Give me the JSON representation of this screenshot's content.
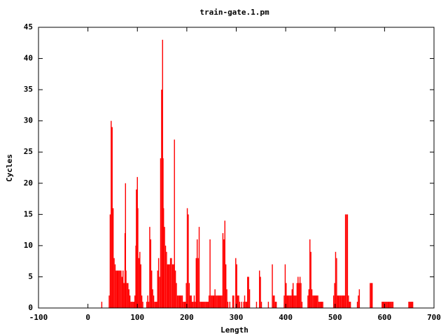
{
  "chart_data": {
    "type": "bar",
    "title": "train-gate.1.pm",
    "x_label": "Length",
    "y_label": "Cycles",
    "color": "#ff0000",
    "grid": false,
    "xlim": [
      -100,
      700
    ],
    "xticks": [
      -100,
      0,
      100,
      200,
      300,
      400,
      500,
      600,
      700
    ],
    "ylim": [
      0,
      45
    ],
    "yticks": [
      0,
      5,
      10,
      15,
      20,
      25,
      30,
      35,
      40,
      45
    ],
    "x": [
      27,
      42,
      44,
      46,
      48,
      50,
      52,
      54,
      56,
      58,
      60,
      62,
      64,
      66,
      68,
      70,
      72,
      74,
      75,
      76,
      78,
      80,
      82,
      84,
      86,
      88,
      90,
      92,
      94,
      96,
      97,
      99,
      100,
      102,
      104,
      106,
      108,
      110,
      118,
      120,
      122,
      124,
      126,
      128,
      130,
      132,
      134,
      136,
      138,
      140,
      142,
      144,
      146,
      148,
      150,
      151,
      152,
      154,
      156,
      158,
      160,
      162,
      164,
      166,
      168,
      170,
      172,
      174,
      176,
      178,
      180,
      182,
      184,
      186,
      188,
      190,
      192,
      194,
      196,
      198,
      200,
      202,
      204,
      206,
      208,
      210,
      212,
      214,
      216,
      218,
      220,
      222,
      224,
      226,
      228,
      230,
      232,
      234,
      236,
      238,
      240,
      242,
      244,
      246,
      248,
      250,
      252,
      254,
      256,
      258,
      260,
      262,
      264,
      266,
      268,
      270,
      272,
      274,
      276,
      278,
      280,
      282,
      286,
      292,
      294,
      298,
      300,
      302,
      304,
      306,
      310,
      314,
      316,
      318,
      320,
      322,
      324,
      326,
      340,
      346,
      348,
      350,
      364,
      372,
      374,
      376,
      378,
      380,
      396,
      398,
      400,
      402,
      404,
      406,
      408,
      410,
      412,
      414,
      416,
      418,
      420,
      422,
      424,
      426,
      428,
      430,
      432,
      444,
      446,
      448,
      450,
      452,
      454,
      456,
      458,
      460,
      462,
      464,
      466,
      468,
      470,
      472,
      474,
      496,
      498,
      500,
      502,
      504,
      506,
      508,
      510,
      512,
      514,
      516,
      518,
      520,
      522,
      524,
      526,
      528,
      530,
      544,
      546,
      548,
      570,
      572,
      574,
      594,
      596,
      598,
      600,
      602,
      604,
      606,
      608,
      610,
      612,
      614,
      616,
      648,
      650,
      652,
      654,
      656
    ],
    "values": [
      1,
      2,
      15,
      30,
      29,
      16,
      8,
      7,
      6,
      6,
      6,
      6,
      6,
      6,
      5,
      6,
      4,
      12,
      20,
      6,
      4,
      4,
      3,
      2,
      1,
      1,
      1,
      1,
      2,
      10,
      19,
      21,
      16,
      8,
      9,
      7,
      2,
      1,
      1,
      2,
      1,
      13,
      11,
      6,
      3,
      2,
      1,
      1,
      1,
      6,
      8,
      5,
      24,
      35,
      43,
      24,
      16,
      13,
      10,
      9,
      7,
      7,
      7,
      8,
      8,
      7,
      7,
      27,
      6,
      4,
      2,
      2,
      2,
      2,
      2,
      2,
      1,
      1,
      1,
      4,
      16,
      15,
      4,
      2,
      2,
      1,
      1,
      2,
      1,
      8,
      11,
      8,
      13,
      1,
      1,
      1,
      1,
      1,
      1,
      1,
      1,
      1,
      2,
      11,
      2,
      2,
      2,
      2,
      3,
      2,
      2,
      2,
      2,
      2,
      2,
      2,
      12,
      11,
      14,
      7,
      3,
      1,
      1,
      2,
      2,
      8,
      7,
      2,
      2,
      1,
      1,
      1,
      2,
      1,
      1,
      5,
      5,
      3,
      1,
      6,
      5,
      1,
      1,
      7,
      2,
      2,
      1,
      1,
      2,
      7,
      4,
      2,
      2,
      2,
      2,
      2,
      3,
      4,
      2,
      2,
      2,
      4,
      5,
      4,
      5,
      4,
      1,
      2,
      3,
      11,
      9,
      3,
      2,
      2,
      2,
      2,
      2,
      2,
      1,
      1,
      1,
      1,
      1,
      2,
      4,
      9,
      8,
      2,
      2,
      2,
      2,
      2,
      2,
      2,
      2,
      15,
      15,
      15,
      2,
      1,
      1,
      1,
      2,
      3,
      4,
      4,
      4,
      1,
      1,
      1,
      1,
      1,
      1,
      1,
      1,
      1,
      1,
      1,
      1,
      1,
      1,
      1,
      1,
      1
    ]
  }
}
